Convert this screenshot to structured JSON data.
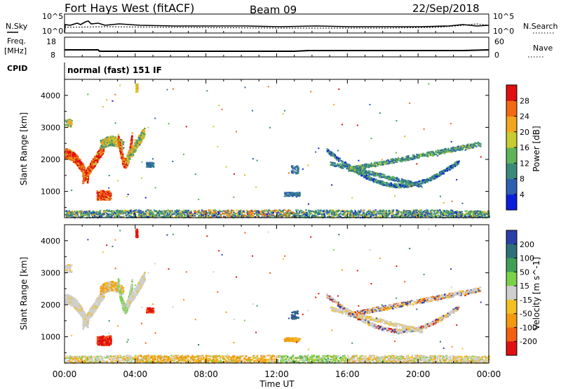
{
  "header": {
    "radar": "Fort Hays West (fitACF)",
    "beam": "Beam 09",
    "date": "22/Sep/2018"
  },
  "top_panels": {
    "nsky_label": "N.Sky",
    "nsky_ticks": [
      "10^5",
      "10^0"
    ],
    "nsearch_label": "N.Search",
    "freq_label_1": "Freq.",
    "freq_label_2": "[MHz]",
    "freq_ticks": [
      "18",
      "8"
    ],
    "nave_label": "Nave",
    "nave_ticks": [
      "60",
      "0"
    ],
    "cpid_label": "CPID",
    "cpid_value": "normal (fast) 151 IF"
  },
  "chart_data": [
    {
      "type": "heatmap",
      "panel": "power",
      "ylabel": "Slant Range [km]",
      "xlabel": "",
      "y_ticks": [
        "1000",
        "2000",
        "3000",
        "4000"
      ],
      "ylim": [
        180,
        4500
      ],
      "xlim": [
        0,
        24
      ],
      "colorbar_label": "Power [dB]",
      "colorbar_ticks": [
        "4",
        "8",
        "12",
        "16",
        "20",
        "24",
        "28"
      ],
      "colorbar_range": [
        0,
        32
      ],
      "colors": [
        "#0a1edc",
        "#2e5fb0",
        "#3a8a7a",
        "#5fb45a",
        "#c8cc30",
        "#f2a51e",
        "#f26a12",
        "#e01010"
      ]
    },
    {
      "type": "heatmap",
      "panel": "velocity",
      "ylabel": "Slant Range [km]",
      "xlabel": "Time UT",
      "y_ticks": [
        "1000",
        "2000",
        "3000",
        "4000"
      ],
      "x_ticks": [
        "00:00",
        "04:00",
        "08:00",
        "12:00",
        "16:00",
        "20:00",
        "00:00"
      ],
      "ylim": [
        180,
        4500
      ],
      "xlim": [
        0,
        24
      ],
      "colorbar_label": "Velocity [m s^-1]",
      "colorbar_ticks": [
        "200",
        "100",
        "50",
        "15",
        "-15",
        "-50",
        "-100",
        "-200"
      ],
      "colors": [
        "#2a3fa8",
        "#2f6f7a",
        "#3f9f55",
        "#7bd24a",
        "#cfcfcf",
        "#f2c020",
        "#f29a10",
        "#f26010",
        "#e01010"
      ]
    }
  ]
}
